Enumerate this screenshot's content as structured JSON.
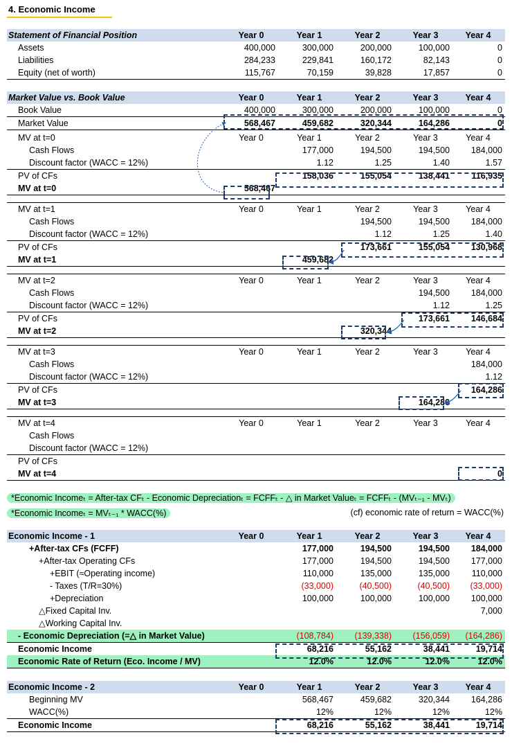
{
  "title": "4. Economic Income",
  "years": [
    "Year 0",
    "Year 1",
    "Year 2",
    "Year 3",
    "Year 4"
  ],
  "sfp": {
    "header": "Statement of Financial Position",
    "rows": [
      {
        "label": "Assets",
        "values": [
          "400,000",
          "300,000",
          "200,000",
          "100,000",
          "0"
        ]
      },
      {
        "label": "Liabilities",
        "values": [
          "284,233",
          "229,841",
          "160,172",
          "82,143",
          "0"
        ]
      },
      {
        "label": "Equity (net of worth)",
        "values": [
          "115,767",
          "70,159",
          "39,828",
          "17,857",
          "0"
        ]
      }
    ]
  },
  "mvbv": {
    "header": "Market Value vs. Book Value",
    "rows": [
      {
        "label": "Book Value",
        "values": [
          "400,000",
          "300,000",
          "200,000",
          "100,000",
          "0"
        ]
      },
      {
        "label": "Market Value",
        "values": [
          "568,467",
          "459,682",
          "320,344",
          "164,286",
          "0"
        ]
      }
    ]
  },
  "mv_blocks": [
    {
      "label": "MV at t=0",
      "cash_flows": [
        "",
        "177,000",
        "194,500",
        "194,500",
        "184,000"
      ],
      "discount": [
        "",
        "1.12",
        "1.25",
        "1.40",
        "1.57"
      ],
      "pv": [
        "",
        "158,036",
        "155,054",
        "138,441",
        "116,935"
      ],
      "mv_label": "MV at t=0",
      "mv_value": "568,467"
    },
    {
      "label": "MV at t=1",
      "cash_flows": [
        "",
        "",
        "194,500",
        "194,500",
        "184,000"
      ],
      "discount": [
        "",
        "",
        "1.12",
        "1.25",
        "1.40"
      ],
      "pv": [
        "",
        "",
        "173,661",
        "155,054",
        "130,968"
      ],
      "mv_label": "MV at t=1",
      "mv_value": "459,682"
    },
    {
      "label": "MV at t=2",
      "cash_flows": [
        "",
        "",
        "",
        "194,500",
        "184,000"
      ],
      "discount": [
        "",
        "",
        "",
        "1.12",
        "1.25"
      ],
      "pv": [
        "",
        "",
        "",
        "173,661",
        "146,684"
      ],
      "mv_label": "MV at t=2",
      "mv_value": "320,344"
    },
    {
      "label": "MV at t=3",
      "cash_flows": [
        "",
        "",
        "",
        "",
        "184,000"
      ],
      "discount": [
        "",
        "",
        "",
        "",
        "1.12"
      ],
      "pv": [
        "",
        "",
        "",
        "",
        "164,286"
      ],
      "mv_label": "MV at t=3",
      "mv_value": "164,286"
    },
    {
      "label": "MV at t=4",
      "cash_flows": [
        "",
        "",
        "",
        "",
        ""
      ],
      "discount": [
        "",
        "",
        "",
        "",
        ""
      ],
      "pv": [
        "",
        "",
        "",
        "",
        ""
      ],
      "mv_label": "MV at t=4",
      "mv_value": "0"
    }
  ],
  "labels": {
    "cash_flows": "Cash Flows",
    "discount": "Discount factor (WACC = 12%)",
    "pv": "PV of CFs"
  },
  "formula1": "*Economic Incomeₜ = After-tax CFₜ - Economic Depreciationₜ = FCFFₜ - △ in Market Valueₜ = FCFFₜ - (MVₜ₋₁ - MVₜ)",
  "formula2": "*Economic Incomeₜ = MVₜ₋₁ * WACC(%)",
  "formula_note": "(cf) economic rate of return = WACC(%)",
  "ei1": {
    "header": "Economic Income - 1",
    "rows": [
      {
        "label": "+After-tax CFs (FCFF)",
        "values": [
          "",
          "177,000",
          "194,500",
          "194,500",
          "184,000"
        ]
      },
      {
        "label": "+After-tax Operating CFs",
        "values": [
          "",
          "177,000",
          "194,500",
          "194,500",
          "177,000"
        ]
      },
      {
        "label": "+EBIT (≈Operating income)",
        "values": [
          "",
          "110,000",
          "135,000",
          "135,000",
          "110,000"
        ]
      },
      {
        "label": "- Taxes (T/R=30%)",
        "values": [
          "",
          "(33,000)",
          "(40,500)",
          "(40,500)",
          "(33,000)"
        ]
      },
      {
        "label": "+Depreciation",
        "values": [
          "",
          "100,000",
          "100,000",
          "100,000",
          "100,000"
        ]
      },
      {
        "label": "△Fixed Capital Inv.",
        "values": [
          "",
          "",
          "",
          "",
          "7,000"
        ]
      },
      {
        "label": "△Working Capital Inv.",
        "values": [
          "",
          "",
          "",
          "",
          ""
        ]
      },
      {
        "label": "- Economic Depreciation (=△ in Market Value)",
        "values": [
          "",
          "(108,784)",
          "(139,338)",
          "(156,059)",
          "(164,286)"
        ]
      },
      {
        "label": "Economic Income",
        "values": [
          "",
          "68,216",
          "55,162",
          "38,441",
          "19,714"
        ]
      },
      {
        "label": "Economic Rate of Return (Eco. Income / MV)",
        "values": [
          "",
          "12.0%",
          "12.0%",
          "12.0%",
          "12.0%"
        ]
      }
    ]
  },
  "ei2": {
    "header": "Economic Income - 2",
    "rows": [
      {
        "label": "Beginning MV",
        "values": [
          "",
          "568,467",
          "459,682",
          "320,344",
          "164,286"
        ]
      },
      {
        "label": "WACC(%)",
        "values": [
          "",
          "12%",
          "12%",
          "12%",
          "12%"
        ]
      },
      {
        "label": "Economic Income",
        "values": [
          "",
          "68,216",
          "55,162",
          "38,441",
          "19,714"
        ]
      }
    ]
  }
}
